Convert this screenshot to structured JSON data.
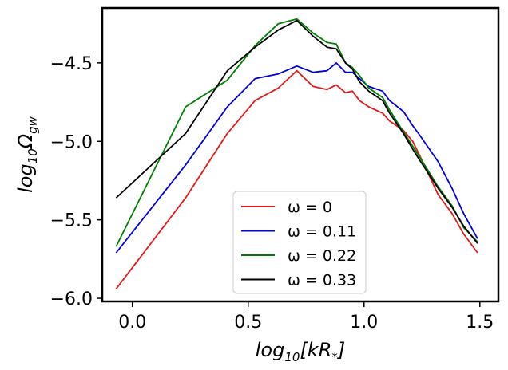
{
  "chart_data": {
    "type": "line",
    "xlabel": {
      "main": "log",
      "sub": "10",
      "rest": "[kR",
      "sub2": "*",
      "close": "]"
    },
    "ylabel": {
      "main": "log",
      "sub": "10",
      "omega": "Ω",
      "sub2": "gw"
    },
    "xlim": [
      -0.13,
      1.58
    ],
    "ylim": [
      -6.02,
      -4.15
    ],
    "xticks": [
      0.0,
      0.5,
      1.0,
      1.5
    ],
    "xtick_labels": [
      "0.0",
      "0.5",
      "1.0",
      "1.5"
    ],
    "yticks": [
      -6.0,
      -5.5,
      -5.0,
      -4.5
    ],
    "ytick_labels": [
      "−6.0",
      "−5.5",
      "−5.0",
      "−4.5"
    ],
    "legend_position": "lower-center",
    "series": [
      {
        "name": "ω = 0",
        "color": "#e41a1a",
        "x": [
          -0.07,
          0.23,
          0.41,
          0.53,
          0.63,
          0.71,
          0.78,
          0.84,
          0.88,
          0.92,
          0.95,
          0.98,
          1.02,
          1.08,
          1.11,
          1.17,
          1.21,
          1.24,
          1.32,
          1.38,
          1.43,
          1.49
        ],
        "y": [
          -5.94,
          -5.36,
          -4.95,
          -4.74,
          -4.66,
          -4.55,
          -4.65,
          -4.67,
          -4.64,
          -4.69,
          -4.68,
          -4.74,
          -4.78,
          -4.82,
          -4.87,
          -4.93,
          -5.0,
          -5.09,
          -5.34,
          -5.46,
          -5.59,
          -5.71
        ]
      },
      {
        "name": "ω = 0.11",
        "color": "#0000e0",
        "x": [
          -0.07,
          0.23,
          0.41,
          0.53,
          0.63,
          0.71,
          0.78,
          0.84,
          0.88,
          0.92,
          0.95,
          0.98,
          1.02,
          1.08,
          1.11,
          1.17,
          1.21,
          1.24,
          1.32,
          1.38,
          1.43,
          1.49
        ],
        "y": [
          -5.71,
          -5.15,
          -4.78,
          -4.6,
          -4.57,
          -4.52,
          -4.56,
          -4.55,
          -4.5,
          -4.56,
          -4.56,
          -4.6,
          -4.65,
          -4.68,
          -4.74,
          -4.81,
          -4.9,
          -4.96,
          -5.13,
          -5.3,
          -5.46,
          -5.62
        ]
      },
      {
        "name": "ω = 0.22",
        "color": "#008000",
        "x": [
          -0.07,
          0.23,
          0.41,
          0.53,
          0.63,
          0.71,
          0.78,
          0.84,
          0.88,
          0.92,
          0.95,
          0.98,
          1.02,
          1.08,
          1.11,
          1.17,
          1.21,
          1.24,
          1.32,
          1.38,
          1.43,
          1.49
        ],
        "y": [
          -5.67,
          -4.78,
          -4.61,
          -4.39,
          -4.25,
          -4.22,
          -4.31,
          -4.37,
          -4.38,
          -4.5,
          -4.53,
          -4.58,
          -4.66,
          -4.72,
          -4.8,
          -4.94,
          -5.03,
          -5.1,
          -5.29,
          -5.41,
          -5.55,
          -5.64
        ]
      },
      {
        "name": "ω = 0.33",
        "color": "#000000",
        "x": [
          -0.07,
          0.23,
          0.41,
          0.53,
          0.63,
          0.71,
          0.78,
          0.84,
          0.88,
          0.92,
          0.95,
          0.98,
          1.02,
          1.08,
          1.11,
          1.17,
          1.21,
          1.24,
          1.32,
          1.38,
          1.43,
          1.49
        ],
        "y": [
          -5.36,
          -4.95,
          -4.55,
          -4.4,
          -4.29,
          -4.23,
          -4.33,
          -4.4,
          -4.41,
          -4.5,
          -4.54,
          -4.62,
          -4.68,
          -4.74,
          -4.82,
          -4.95,
          -5.05,
          -5.12,
          -5.3,
          -5.42,
          -5.54,
          -5.65
        ]
      }
    ]
  }
}
